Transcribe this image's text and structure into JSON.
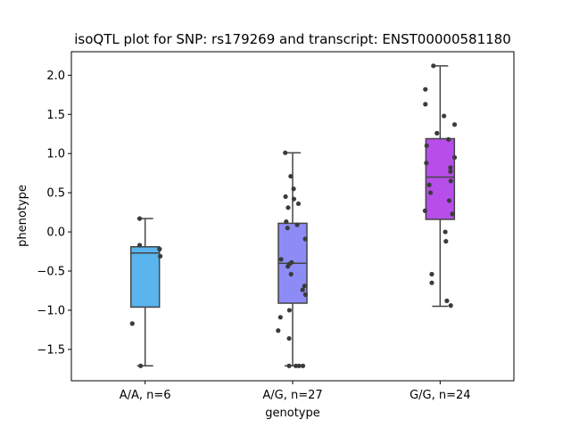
{
  "chart_data": {
    "type": "boxplot",
    "title": "isoQTL plot for SNP: rs179269 and transcript: ENST00000581180",
    "xlabel": "genotype",
    "ylabel": "phenotype",
    "ylim": [
      -1.9,
      2.3
    ],
    "yticks": [
      -1.5,
      -1.0,
      -0.5,
      0.0,
      0.5,
      1.0,
      1.5,
      2.0
    ],
    "ytick_labels": [
      "−1.5",
      "−1.0",
      "−0.5",
      "0.0",
      "0.5",
      "1.0",
      "1.5",
      "2.0"
    ],
    "categories": [
      "A/A, n=6",
      "A/G, n=27",
      "G/G, n=24"
    ],
    "grid": false,
    "legend": "none",
    "boxes": [
      {
        "label": "A/A, n=6",
        "color": "#5ab4ee",
        "whisker_low": -1.71,
        "q1": -0.96,
        "median": -0.27,
        "q3": -0.19,
        "whisker_high": 0.17
      },
      {
        "label": "A/G, n=27",
        "color": "#8d8cf6",
        "whisker_low": -1.71,
        "q1": -0.91,
        "median": -0.4,
        "q3": 0.11,
        "whisker_high": 1.01
      },
      {
        "label": "G/G, n=24",
        "color": "#b74ee9",
        "whisker_low": -0.95,
        "q1": 0.16,
        "median": 0.7,
        "q3": 1.19,
        "whisker_high": 2.12
      }
    ],
    "points": [
      {
        "category": 0,
        "values": [
          0.17,
          -0.17,
          -0.22,
          -0.31,
          -1.17,
          -1.71
        ],
        "offsets": [
          -0.17,
          -0.17,
          0.45,
          0.47,
          -0.4,
          -0.14
        ]
      },
      {
        "category": 1,
        "values": [
          1.01,
          0.71,
          0.55,
          0.45,
          0.36,
          0.31,
          0.13,
          0.09,
          0.05,
          -0.09,
          -0.35,
          -0.39,
          -0.41,
          -0.44,
          -0.54,
          -0.69,
          -0.74,
          -0.8,
          -1.0,
          -1.09,
          -1.26,
          -1.36,
          -1.71,
          -1.71,
          -1.71,
          -1.71,
          0.42
        ],
        "offsets": [
          -0.23,
          -0.06,
          0.03,
          -0.22,
          0.18,
          -0.14,
          -0.2,
          0.14,
          -0.16,
          0.39,
          -0.36,
          -0.03,
          -0.1,
          -0.15,
          -0.05,
          0.37,
          0.31,
          0.4,
          -0.1,
          -0.38,
          -0.45,
          -0.11,
          -0.11,
          0.1,
          0.2,
          0.32,
          0.04
        ]
      },
      {
        "category": 2,
        "values": [
          2.12,
          1.82,
          1.63,
          1.48,
          1.37,
          1.26,
          1.18,
          1.1,
          0.95,
          0.88,
          0.82,
          0.77,
          0.65,
          0.6,
          0.5,
          0.4,
          0.27,
          0.23,
          0.0,
          -0.12,
          -0.54,
          -0.65,
          -0.88,
          -0.94
        ],
        "offsets": [
          -0.21,
          -0.46,
          -0.46,
          0.12,
          0.45,
          -0.1,
          0.26,
          -0.42,
          0.45,
          -0.43,
          0.32,
          0.32,
          0.33,
          -0.34,
          -0.3,
          0.28,
          -0.47,
          0.38,
          0.16,
          0.18,
          -0.26,
          -0.26,
          0.21,
          0.33
        ]
      }
    ]
  }
}
